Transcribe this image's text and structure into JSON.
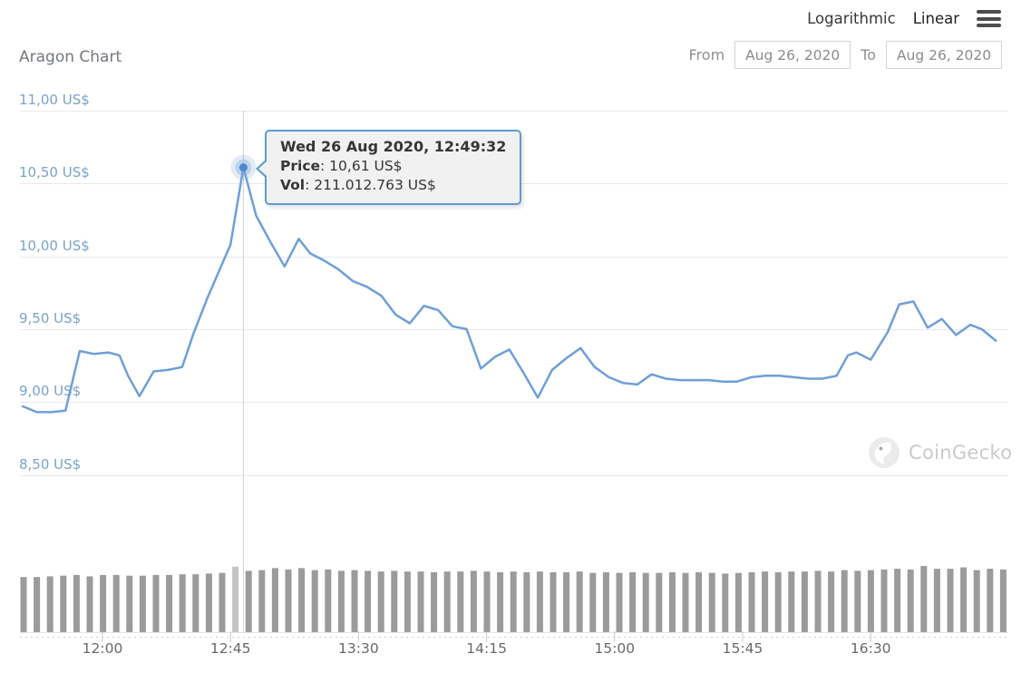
{
  "header": {
    "scale_options": [
      {
        "label": "Logarithmic",
        "active": false
      },
      {
        "label": "Linear",
        "active": true
      }
    ]
  },
  "title": "Aragon Chart",
  "date_range": {
    "from_label": "From",
    "from_value": "Aug 26, 2020",
    "to_label": "To",
    "to_value": "Aug 26, 2020"
  },
  "tooltip": {
    "datetime": "Wed 26 Aug 2020, 12:49:32",
    "separator": ": ",
    "rows": [
      {
        "label": "Price",
        "value": "10,61 US$"
      },
      {
        "label": "Vol",
        "value": "211.012.763 US$"
      }
    ]
  },
  "watermark": {
    "text": "CoinGecko",
    "icon": "coingecko-gecko-icon"
  },
  "colors": {
    "line": "#6f9fd8",
    "dot": "#4c88cc",
    "halo_outer": "rgba(125,165,215,0.22)",
    "halo_inner": "rgba(125,165,215,0.35)",
    "grid": "#e9e9e9",
    "y_label": "#7ba2cb",
    "x_label": "#67696d",
    "bar": "#9b9b9b",
    "bar_highlight": "#c4c4c4",
    "crosshair": "#d8d8d8",
    "axis_dash": "#cfcfcf",
    "tick": "#c8c8c8",
    "tooltip_border": "#5d9bd7",
    "tooltip_bg": "#f1f1f1"
  },
  "chart_data": {
    "type": "line",
    "title": "Aragon Chart",
    "currency": "US$",
    "date": "Aug 26, 2020",
    "y_axis": {
      "tick_labels": [
        "11,00 US$",
        "10,50 US$",
        "10,00 US$",
        "9,50 US$",
        "9,00 US$",
        "8,50 US$"
      ],
      "tick_values": [
        11.0,
        10.5,
        10.0,
        9.5,
        9.0,
        8.5
      ],
      "ylim": [
        8.5,
        11.0
      ]
    },
    "x_axis": {
      "tick_labels": [
        "12:00",
        "12:45",
        "13:30",
        "14:15",
        "15:00",
        "15:45",
        "16:30"
      ],
      "range": [
        "11:32",
        "17:14"
      ]
    },
    "highlighted_point": {
      "datetime": "Wed 26 Aug 2020, 12:49:32",
      "time": "12:49:32",
      "price_usd": 10.61,
      "price_display": "10,61 US$",
      "volume_display": "211.012.763 US$"
    },
    "price_series": [
      [
        "11:32",
        8.97
      ],
      [
        "11:37",
        8.93
      ],
      [
        "11:42",
        8.93
      ],
      [
        "11:47",
        8.94
      ],
      [
        "11:52",
        9.35
      ],
      [
        "11:57",
        9.33
      ],
      [
        "12:02",
        9.34
      ],
      [
        "12:06",
        9.32
      ],
      [
        "12:09",
        9.18
      ],
      [
        "12:13",
        9.04
      ],
      [
        "12:18",
        9.21
      ],
      [
        "12:23",
        9.22
      ],
      [
        "12:28",
        9.24
      ],
      [
        "12:32",
        9.47
      ],
      [
        "12:37",
        9.72
      ],
      [
        "12:41",
        9.9
      ],
      [
        "12:45",
        10.08
      ],
      [
        "12:49:32",
        10.61
      ],
      [
        "12:54",
        10.28
      ],
      [
        "12:59",
        10.1
      ],
      [
        "13:04",
        9.93
      ],
      [
        "13:09",
        10.12
      ],
      [
        "13:13",
        10.02
      ],
      [
        "13:18",
        9.97
      ],
      [
        "13:23",
        9.91
      ],
      [
        "13:28",
        9.83
      ],
      [
        "13:33",
        9.79
      ],
      [
        "13:38",
        9.73
      ],
      [
        "13:43",
        9.6
      ],
      [
        "13:48",
        9.54
      ],
      [
        "13:53",
        9.66
      ],
      [
        "13:58",
        9.63
      ],
      [
        "14:03",
        9.52
      ],
      [
        "14:08",
        9.5
      ],
      [
        "14:13",
        9.23
      ],
      [
        "14:18",
        9.31
      ],
      [
        "14:23",
        9.36
      ],
      [
        "14:28",
        9.2
      ],
      [
        "14:33",
        9.03
      ],
      [
        "14:38",
        9.22
      ],
      [
        "14:43",
        9.3
      ],
      [
        "14:48",
        9.37
      ],
      [
        "14:53",
        9.24
      ],
      [
        "14:58",
        9.17
      ],
      [
        "15:03",
        9.13
      ],
      [
        "15:08",
        9.12
      ],
      [
        "15:13",
        9.19
      ],
      [
        "15:18",
        9.16
      ],
      [
        "15:23",
        9.15
      ],
      [
        "15:28",
        9.15
      ],
      [
        "15:33",
        9.15
      ],
      [
        "15:38",
        9.14
      ],
      [
        "15:43",
        9.14
      ],
      [
        "15:48",
        9.17
      ],
      [
        "15:53",
        9.18
      ],
      [
        "15:58",
        9.18
      ],
      [
        "16:03",
        9.17
      ],
      [
        "16:08",
        9.16
      ],
      [
        "16:13",
        9.16
      ],
      [
        "16:18",
        9.18
      ],
      [
        "16:22",
        9.32
      ],
      [
        "16:25",
        9.34
      ],
      [
        "16:30",
        9.29
      ],
      [
        "16:36",
        9.48
      ],
      [
        "16:40",
        9.67
      ],
      [
        "16:45",
        9.69
      ],
      [
        "16:50",
        9.51
      ],
      [
        "16:55",
        9.57
      ],
      [
        "17:00",
        9.46
      ],
      [
        "17:05",
        9.53
      ],
      [
        "17:09",
        9.5
      ],
      [
        "17:14",
        9.42
      ]
    ],
    "volume_bars": {
      "relative_heights": [
        0.8,
        0.8,
        0.81,
        0.82,
        0.83,
        0.81,
        0.83,
        0.83,
        0.82,
        0.82,
        0.83,
        0.83,
        0.84,
        0.84,
        0.85,
        0.86,
        0.95,
        0.89,
        0.9,
        0.93,
        0.91,
        0.93,
        0.9,
        0.91,
        0.89,
        0.9,
        0.89,
        0.88,
        0.89,
        0.88,
        0.88,
        0.87,
        0.88,
        0.88,
        0.89,
        0.88,
        0.87,
        0.88,
        0.87,
        0.88,
        0.87,
        0.87,
        0.88,
        0.86,
        0.87,
        0.86,
        0.87,
        0.86,
        0.86,
        0.87,
        0.86,
        0.87,
        0.86,
        0.85,
        0.86,
        0.87,
        0.88,
        0.87,
        0.88,
        0.88,
        0.89,
        0.88,
        0.9,
        0.89,
        0.9,
        0.91,
        0.92,
        0.91,
        0.96,
        0.92,
        0.92,
        0.94,
        0.9,
        0.92,
        0.91
      ],
      "highlight_index": 16
    }
  }
}
